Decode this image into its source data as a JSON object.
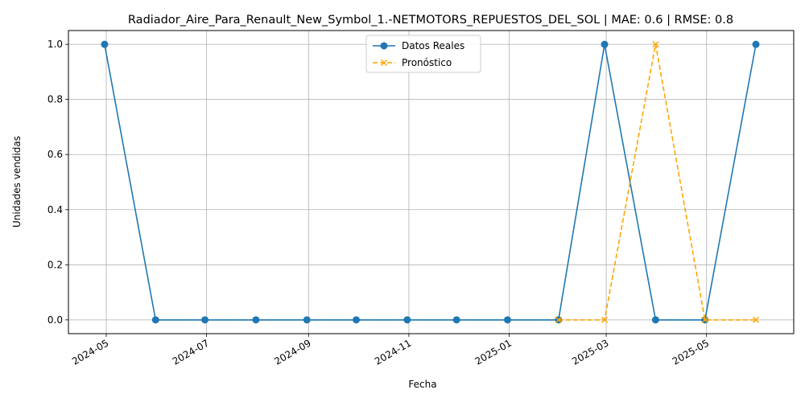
{
  "chart_data": {
    "type": "line",
    "title": "Radiador_Aire_Para_Renault_New_Symbol_1.-NETMOTORS_REPUESTOS_DEL_SOL | MAE: 0.6 | RMSE: 0.8",
    "xlabel": "Fecha",
    "ylabel": "Unidades vendidas",
    "ylim": [
      -0.05,
      1.05
    ],
    "xlim": [
      "2024-04-08",
      "2025-06-23"
    ],
    "grid": true,
    "legend_position": "top-center",
    "x_ticks": [
      "2024-05",
      "2024-07",
      "2024-09",
      "2024-11",
      "2025-01",
      "2025-03",
      "2025-05"
    ],
    "y_ticks": [
      "0.0",
      "0.2",
      "0.4",
      "0.6",
      "0.8",
      "1.0"
    ],
    "series": [
      {
        "name": "Datos Reales",
        "color": "#1f77b4",
        "marker": "circle",
        "line_style": "solid",
        "x": [
          "2024-04-30",
          "2024-05-31",
          "2024-06-30",
          "2024-07-31",
          "2024-08-31",
          "2024-09-30",
          "2024-10-31",
          "2024-11-30",
          "2024-12-31",
          "2025-01-31",
          "2025-02-28",
          "2025-03-31",
          "2025-04-30",
          "2025-05-31"
        ],
        "y": [
          1,
          0,
          0,
          0,
          0,
          0,
          0,
          0,
          0,
          0,
          1,
          0,
          0,
          1
        ]
      },
      {
        "name": "Pronóstico",
        "color": "#ffa500",
        "marker": "x",
        "line_style": "dashed",
        "x": [
          "2025-01-31",
          "2025-02-28",
          "2025-03-31",
          "2025-04-30",
          "2025-05-31"
        ],
        "y": [
          0,
          0,
          1,
          0,
          0
        ]
      }
    ]
  }
}
